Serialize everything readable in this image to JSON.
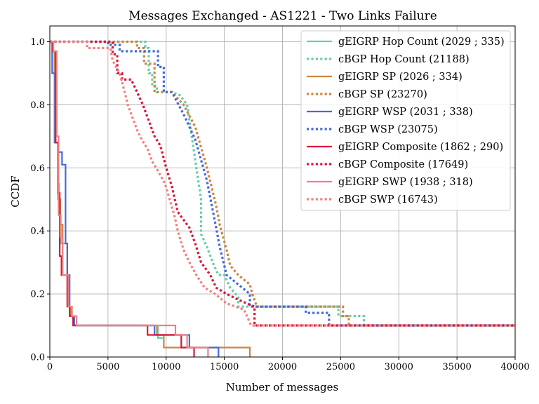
{
  "chart_data": {
    "type": "line",
    "title": "Messages Exchanged - AS1221 - Two Links Failure",
    "xlabel": "Number of messages",
    "ylabel": "CCDF",
    "xlim": [
      0,
      40000
    ],
    "ylim": [
      0,
      1.05
    ],
    "xticks": [
      0,
      5000,
      10000,
      15000,
      20000,
      25000,
      30000,
      35000,
      40000
    ],
    "yticks": [
      0.0,
      0.2,
      0.4,
      0.6,
      0.8,
      1.0
    ],
    "xtick_labels": [
      "0",
      "5000",
      "10000",
      "15000",
      "20000",
      "25000",
      "30000",
      "35000",
      "40000"
    ],
    "ytick_labels": [
      "0.0",
      "0.2",
      "0.4",
      "0.6",
      "0.8",
      "1.0"
    ],
    "grid": true,
    "legend_position": "top-right",
    "series": [
      {
        "name": "gEIGRP Hop Count (2029 ; 335)",
        "color": "#66cdaa",
        "style": "solid",
        "points": [
          [
            0,
            1.0
          ],
          [
            250,
            1.0
          ],
          [
            250,
            0.97
          ],
          [
            400,
            0.97
          ],
          [
            400,
            0.68
          ],
          [
            700,
            0.68
          ],
          [
            700,
            0.55
          ],
          [
            800,
            0.55
          ],
          [
            800,
            0.45
          ],
          [
            950,
            0.45
          ],
          [
            950,
            0.36
          ],
          [
            1100,
            0.36
          ],
          [
            1100,
            0.26
          ],
          [
            1500,
            0.26
          ],
          [
            1500,
            0.16
          ],
          [
            1700,
            0.16
          ],
          [
            1700,
            0.13
          ],
          [
            2000,
            0.13
          ],
          [
            2000,
            0.1
          ],
          [
            9300,
            0.1
          ],
          [
            9300,
            0.06
          ],
          [
            9700,
            0.06
          ]
        ]
      },
      {
        "name": "gEIGRP SP (2026 ; 334)",
        "color": "#cd853f",
        "style": "solid",
        "points": [
          [
            0,
            1.0
          ],
          [
            250,
            1.0
          ],
          [
            250,
            0.97
          ],
          [
            400,
            0.97
          ],
          [
            400,
            0.68
          ],
          [
            700,
            0.68
          ],
          [
            700,
            0.5
          ],
          [
            900,
            0.5
          ],
          [
            900,
            0.42
          ],
          [
            1100,
            0.42
          ],
          [
            1100,
            0.36
          ],
          [
            1500,
            0.36
          ],
          [
            1500,
            0.26
          ],
          [
            1600,
            0.26
          ],
          [
            1600,
            0.16
          ],
          [
            1800,
            0.16
          ],
          [
            1800,
            0.13
          ],
          [
            2000,
            0.13
          ],
          [
            2000,
            0.1
          ],
          [
            9200,
            0.1
          ],
          [
            9200,
            0.07
          ],
          [
            9800,
            0.07
          ],
          [
            9800,
            0.03
          ],
          [
            17200,
            0.03
          ],
          [
            17200,
            0.0
          ]
        ]
      },
      {
        "name": "gEIGRP WSP (2031 ; 338)",
        "color": "#4169e1",
        "style": "solid",
        "points": [
          [
            0,
            1.0
          ],
          [
            200,
            1.0
          ],
          [
            200,
            0.9
          ],
          [
            450,
            0.9
          ],
          [
            450,
            0.68
          ],
          [
            750,
            0.68
          ],
          [
            750,
            0.65
          ],
          [
            1050,
            0.65
          ],
          [
            1050,
            0.61
          ],
          [
            1350,
            0.61
          ],
          [
            1350,
            0.36
          ],
          [
            1500,
            0.36
          ],
          [
            1500,
            0.26
          ],
          [
            1700,
            0.26
          ],
          [
            1700,
            0.16
          ],
          [
            1900,
            0.16
          ],
          [
            1900,
            0.13
          ],
          [
            2100,
            0.13
          ],
          [
            2100,
            0.1
          ],
          [
            9000,
            0.1
          ],
          [
            9000,
            0.07
          ],
          [
            12000,
            0.07
          ],
          [
            12000,
            0.03
          ],
          [
            14500,
            0.03
          ],
          [
            14500,
            0.0
          ]
        ]
      },
      {
        "name": "gEIGRP Composite (1862 ; 290)",
        "color": "#dc143c",
        "style": "solid",
        "points": [
          [
            0,
            1.0
          ],
          [
            250,
            1.0
          ],
          [
            250,
            0.97
          ],
          [
            500,
            0.97
          ],
          [
            500,
            0.68
          ],
          [
            700,
            0.68
          ],
          [
            700,
            0.52
          ],
          [
            850,
            0.52
          ],
          [
            850,
            0.32
          ],
          [
            1000,
            0.32
          ],
          [
            1000,
            0.26
          ],
          [
            1500,
            0.26
          ],
          [
            1500,
            0.16
          ],
          [
            1700,
            0.16
          ],
          [
            1700,
            0.13
          ],
          [
            2000,
            0.13
          ],
          [
            2000,
            0.1
          ],
          [
            8400,
            0.1
          ],
          [
            8400,
            0.07
          ],
          [
            11300,
            0.07
          ],
          [
            11300,
            0.03
          ],
          [
            12400,
            0.03
          ],
          [
            12400,
            0.0
          ]
        ]
      },
      {
        "name": "gEIGRP SWP (1938 ; 318)",
        "color": "#f08080",
        "style": "solid",
        "points": [
          [
            0,
            1.0
          ],
          [
            300,
            1.0
          ],
          [
            300,
            0.97
          ],
          [
            600,
            0.97
          ],
          [
            600,
            0.7
          ],
          [
            750,
            0.7
          ],
          [
            750,
            0.45
          ],
          [
            900,
            0.45
          ],
          [
            900,
            0.38
          ],
          [
            1100,
            0.38
          ],
          [
            1100,
            0.26
          ],
          [
            1600,
            0.26
          ],
          [
            1600,
            0.16
          ],
          [
            1900,
            0.16
          ],
          [
            1900,
            0.13
          ],
          [
            2300,
            0.13
          ],
          [
            2300,
            0.1
          ],
          [
            10800,
            0.1
          ],
          [
            10800,
            0.07
          ],
          [
            11800,
            0.07
          ],
          [
            11800,
            0.03
          ],
          [
            13600,
            0.03
          ],
          [
            13600,
            0.0
          ]
        ]
      },
      {
        "name": "cBGP Hop Count (21188)",
        "color": "#66cdaa",
        "style": "dotted",
        "points": [
          [
            0,
            1.0
          ],
          [
            8200,
            1.0
          ],
          [
            8200,
            0.98
          ],
          [
            8500,
            0.98
          ],
          [
            8500,
            0.9
          ],
          [
            8800,
            0.9
          ],
          [
            8800,
            0.86
          ],
          [
            9200,
            0.86
          ],
          [
            9200,
            0.84
          ],
          [
            10500,
            0.84
          ],
          [
            11200,
            0.83
          ],
          [
            11800,
            0.8
          ],
          [
            12200,
            0.7
          ],
          [
            12600,
            0.6
          ],
          [
            13000,
            0.5
          ],
          [
            13000,
            0.39
          ],
          [
            13500,
            0.35
          ],
          [
            14000,
            0.3
          ],
          [
            14500,
            0.26
          ],
          [
            15000,
            0.26
          ],
          [
            15500,
            0.22
          ],
          [
            16200,
            0.19
          ],
          [
            16200,
            0.16
          ],
          [
            24800,
            0.16
          ],
          [
            24800,
            0.13
          ],
          [
            27000,
            0.13
          ],
          [
            27000,
            0.1
          ],
          [
            40000,
            0.1
          ]
        ]
      },
      {
        "name": "cBGP SP (23270)",
        "color": "#cd853f",
        "style": "dotted",
        "points": [
          [
            0,
            1.0
          ],
          [
            7500,
            1.0
          ],
          [
            7500,
            0.98
          ],
          [
            8100,
            0.98
          ],
          [
            8100,
            0.93
          ],
          [
            9000,
            0.93
          ],
          [
            9000,
            0.84
          ],
          [
            10500,
            0.84
          ],
          [
            11500,
            0.8
          ],
          [
            12500,
            0.73
          ],
          [
            13500,
            0.6
          ],
          [
            14300,
            0.48
          ],
          [
            14600,
            0.42
          ],
          [
            15200,
            0.34
          ],
          [
            15500,
            0.29
          ],
          [
            16200,
            0.26
          ],
          [
            17200,
            0.23
          ],
          [
            17400,
            0.2
          ],
          [
            17800,
            0.16
          ],
          [
            25200,
            0.16
          ],
          [
            25200,
            0.13
          ],
          [
            25700,
            0.13
          ],
          [
            25700,
            0.1
          ],
          [
            40000,
            0.1
          ]
        ]
      },
      {
        "name": "cBGP WSP (23075)",
        "color": "#4169e1",
        "style": "dotted",
        "points": [
          [
            0,
            1.0
          ],
          [
            5000,
            1.0
          ],
          [
            5000,
            0.99
          ],
          [
            6000,
            0.99
          ],
          [
            6000,
            0.97
          ],
          [
            9300,
            0.97
          ],
          [
            9300,
            0.92
          ],
          [
            9800,
            0.92
          ],
          [
            9800,
            0.84
          ],
          [
            10500,
            0.84
          ],
          [
            11500,
            0.77
          ],
          [
            12500,
            0.69
          ],
          [
            13500,
            0.56
          ],
          [
            14300,
            0.41
          ],
          [
            14600,
            0.35
          ],
          [
            15200,
            0.26
          ],
          [
            16200,
            0.23
          ],
          [
            17200,
            0.2
          ],
          [
            17200,
            0.16
          ],
          [
            22000,
            0.16
          ],
          [
            22000,
            0.14
          ],
          [
            24000,
            0.14
          ],
          [
            24000,
            0.1
          ],
          [
            40000,
            0.1
          ]
        ]
      },
      {
        "name": "cBGP Composite (17649)",
        "color": "#dc143c",
        "style": "dotted",
        "points": [
          [
            0,
            1.0
          ],
          [
            5400,
            1.0
          ],
          [
            5400,
            0.96
          ],
          [
            5800,
            0.96
          ],
          [
            5800,
            0.9
          ],
          [
            6200,
            0.9
          ],
          [
            6200,
            0.88
          ],
          [
            7000,
            0.88
          ],
          [
            7500,
            0.84
          ],
          [
            8000,
            0.8
          ],
          [
            8500,
            0.75
          ],
          [
            9000,
            0.7
          ],
          [
            9500,
            0.67
          ],
          [
            10000,
            0.6
          ],
          [
            10500,
            0.54
          ],
          [
            11000,
            0.46
          ],
          [
            12000,
            0.41
          ],
          [
            12500,
            0.36
          ],
          [
            13000,
            0.3
          ],
          [
            13800,
            0.26
          ],
          [
            14300,
            0.22
          ],
          [
            15200,
            0.2
          ],
          [
            16300,
            0.18
          ],
          [
            17600,
            0.16
          ],
          [
            17600,
            0.1
          ],
          [
            40000,
            0.1
          ]
        ]
      },
      {
        "name": "cBGP SWP (16743)",
        "color": "#f08080",
        "style": "dotted",
        "points": [
          [
            0,
            1.0
          ],
          [
            3200,
            1.0
          ],
          [
            3200,
            0.98
          ],
          [
            5200,
            0.98
          ],
          [
            5400,
            0.94
          ],
          [
            6000,
            0.9
          ],
          [
            6300,
            0.86
          ],
          [
            6700,
            0.8
          ],
          [
            7100,
            0.76
          ],
          [
            7500,
            0.72
          ],
          [
            7900,
            0.69
          ],
          [
            8400,
            0.66
          ],
          [
            8800,
            0.62
          ],
          [
            9300,
            0.59
          ],
          [
            9900,
            0.55
          ],
          [
            10300,
            0.5
          ],
          [
            10700,
            0.45
          ],
          [
            11000,
            0.4
          ],
          [
            11500,
            0.34
          ],
          [
            12000,
            0.3
          ],
          [
            12600,
            0.26
          ],
          [
            13300,
            0.22
          ],
          [
            14200,
            0.2
          ],
          [
            15200,
            0.17
          ],
          [
            16700,
            0.15
          ],
          [
            17300,
            0.1
          ],
          [
            40000,
            0.1
          ]
        ]
      }
    ]
  }
}
